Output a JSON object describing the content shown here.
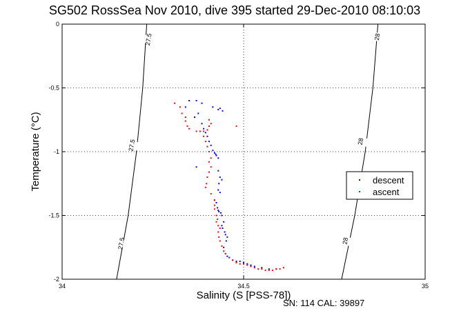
{
  "chart_data": {
    "type": "scatter",
    "title": "SG502 RossSea Nov 2010, dive 395 started 29-Dec-2010 08:10:03",
    "xlabel": "Salinity (S [PSS-78])",
    "ylabel": "Temperature (°C)",
    "xlim": [
      34,
      35
    ],
    "ylim": [
      -2,
      0
    ],
    "x_ticks": [
      "34",
      "34.5",
      "35"
    ],
    "y_ticks": [
      "0",
      "-0.5",
      "-1",
      "-1.5",
      "-2"
    ],
    "grid": true,
    "legend_position": "right",
    "footnote": "SN: 114  CAL: 39897",
    "colors": {
      "descent": "#0000ff",
      "ascent": "#ff0000",
      "contour": "#000000"
    },
    "contours": [
      {
        "label": "27.5",
        "points": [
          [
            34.15,
            -2.0
          ],
          [
            34.182,
            -1.5
          ],
          [
            34.205,
            -1.0
          ],
          [
            34.222,
            -0.5
          ],
          [
            34.233,
            0.0
          ]
        ]
      },
      {
        "label": "28",
        "points": [
          [
            34.77,
            -2.0
          ],
          [
            34.806,
            -1.5
          ],
          [
            34.835,
            -1.0
          ],
          [
            34.856,
            -0.5
          ],
          [
            34.87,
            0.0
          ]
        ]
      }
    ],
    "contour_labels": [
      {
        "text": "27.5",
        "x": 34.238,
        "y": -0.12
      },
      {
        "text": "27.5",
        "x": 34.192,
        "y": -0.95
      },
      {
        "text": "27.5",
        "x": 34.163,
        "y": -1.72
      },
      {
        "text": "28",
        "x": 34.868,
        "y": -0.1
      },
      {
        "text": "28",
        "x": 34.822,
        "y": -0.92
      },
      {
        "text": "28",
        "x": 34.78,
        "y": -1.7
      }
    ],
    "series": [
      {
        "name": "descent",
        "points": [
          [
            34.35,
            -0.6
          ],
          [
            34.37,
            -0.6
          ],
          [
            34.34,
            -0.65
          ],
          [
            34.385,
            -0.62
          ],
          [
            34.415,
            -0.65
          ],
          [
            34.435,
            -0.66
          ],
          [
            34.43,
            -0.67
          ],
          [
            34.442,
            -0.68
          ],
          [
            34.375,
            -0.7
          ],
          [
            34.365,
            -0.73
          ],
          [
            34.385,
            -0.78
          ],
          [
            34.39,
            -0.82
          ],
          [
            34.395,
            -0.85
          ],
          [
            34.4,
            -0.88
          ],
          [
            34.405,
            -0.92
          ],
          [
            34.41,
            -0.95
          ],
          [
            34.415,
            -0.99
          ],
          [
            34.42,
            -1.01
          ],
          [
            34.425,
            -1.03
          ],
          [
            34.43,
            -1.05
          ],
          [
            34.423,
            -1.02
          ],
          [
            34.37,
            -1.12
          ],
          [
            34.43,
            -1.15
          ],
          [
            34.435,
            -1.2
          ],
          [
            34.44,
            -1.22
          ],
          [
            34.432,
            -1.25
          ],
          [
            34.43,
            -1.3
          ],
          [
            34.435,
            -1.32
          ],
          [
            34.42,
            -1.38
          ],
          [
            34.425,
            -1.4
          ],
          [
            34.428,
            -1.44
          ],
          [
            34.43,
            -1.46
          ],
          [
            34.432,
            -1.47
          ],
          [
            34.437,
            -1.48
          ],
          [
            34.44,
            -1.5
          ],
          [
            34.445,
            -1.55
          ],
          [
            34.44,
            -1.58
          ],
          [
            34.442,
            -1.6
          ],
          [
            34.448,
            -1.63
          ],
          [
            34.45,
            -1.65
          ],
          [
            34.455,
            -1.67
          ],
          [
            34.452,
            -1.7
          ],
          [
            34.445,
            -1.75
          ],
          [
            34.45,
            -1.8
          ],
          [
            34.455,
            -1.82
          ],
          [
            34.46,
            -1.83
          ],
          [
            34.47,
            -1.85
          ],
          [
            34.48,
            -1.86
          ],
          [
            34.49,
            -1.86
          ],
          [
            34.5,
            -1.87
          ],
          [
            34.51,
            -1.88
          ],
          [
            34.52,
            -1.89
          ],
          [
            34.53,
            -1.9
          ],
          [
            34.55,
            -1.91
          ],
          [
            34.57,
            -1.92
          ],
          [
            34.59,
            -1.92
          ]
        ]
      },
      {
        "name": "ascent",
        "points": [
          [
            34.31,
            -0.62
          ],
          [
            34.325,
            -0.65
          ],
          [
            34.33,
            -0.7
          ],
          [
            34.34,
            -0.73
          ],
          [
            34.34,
            -0.76
          ],
          [
            34.345,
            -0.8
          ],
          [
            34.35,
            -0.82
          ],
          [
            34.37,
            -0.84
          ],
          [
            34.38,
            -0.84
          ],
          [
            34.39,
            -0.84
          ],
          [
            34.4,
            -0.83
          ],
          [
            34.405,
            -0.8
          ],
          [
            34.41,
            -0.78
          ],
          [
            34.405,
            -0.75
          ],
          [
            34.48,
            -0.8
          ],
          [
            34.39,
            -0.88
          ],
          [
            34.395,
            -0.92
          ],
          [
            34.4,
            -0.96
          ],
          [
            34.405,
            -1.0
          ],
          [
            34.41,
            -1.05
          ],
          [
            34.405,
            -1.08
          ],
          [
            34.41,
            -1.12
          ],
          [
            34.405,
            -1.16
          ],
          [
            34.4,
            -1.2
          ],
          [
            34.398,
            -1.25
          ],
          [
            34.395,
            -1.28
          ],
          [
            34.41,
            -1.33
          ],
          [
            34.42,
            -1.38
          ],
          [
            34.42,
            -1.42
          ],
          [
            34.42,
            -1.45
          ],
          [
            34.425,
            -1.5
          ],
          [
            34.428,
            -1.53
          ],
          [
            34.425,
            -1.55
          ],
          [
            34.43,
            -1.58
          ],
          [
            34.435,
            -1.6
          ],
          [
            34.43,
            -1.63
          ],
          [
            34.432,
            -1.67
          ],
          [
            34.435,
            -1.7
          ],
          [
            34.44,
            -1.74
          ],
          [
            34.445,
            -1.78
          ],
          [
            34.45,
            -1.8
          ],
          [
            34.46,
            -1.83
          ],
          [
            34.47,
            -1.85
          ],
          [
            34.48,
            -1.87
          ],
          [
            34.49,
            -1.88
          ],
          [
            34.5,
            -1.88
          ],
          [
            34.51,
            -1.89
          ],
          [
            34.52,
            -1.9
          ],
          [
            34.53,
            -1.91
          ],
          [
            34.54,
            -1.92
          ],
          [
            34.55,
            -1.92
          ],
          [
            34.56,
            -1.93
          ],
          [
            34.57,
            -1.93
          ],
          [
            34.58,
            -1.93
          ],
          [
            34.59,
            -1.92
          ],
          [
            34.6,
            -1.92
          ],
          [
            34.61,
            -1.91
          ]
        ]
      }
    ]
  }
}
